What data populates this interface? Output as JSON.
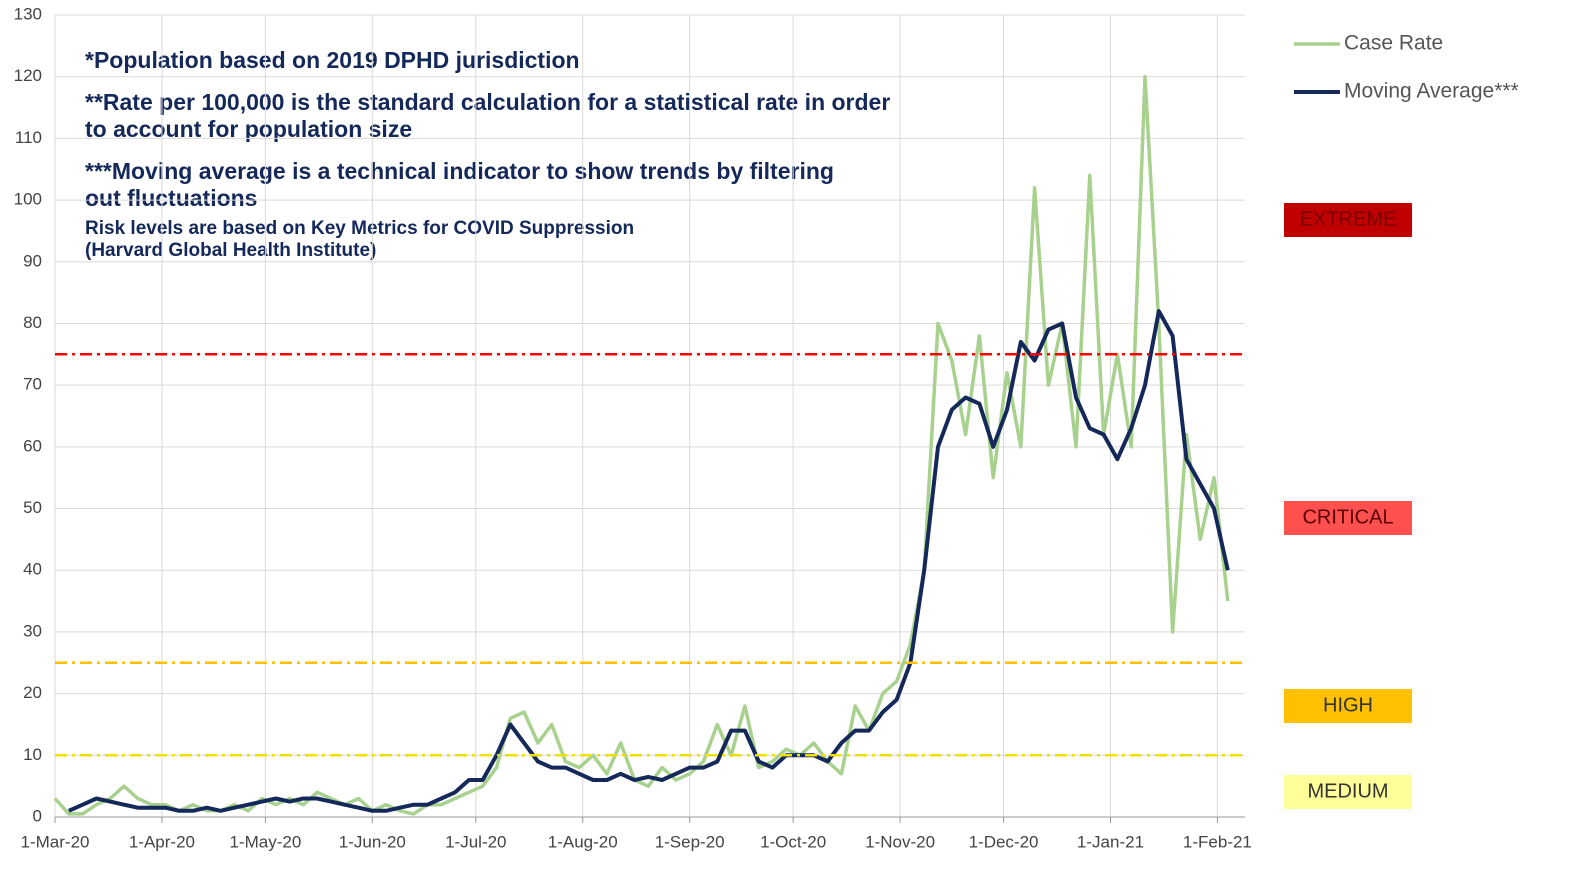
{
  "chart_data": {
    "type": "line",
    "annotations": [
      "*Population based on 2019 DPHD jurisdiction",
      "**Rate per 100,000 is the standard calculation for a statistical rate in order",
      "to account for population size",
      "***Moving average is a technical indicator to show trends by filtering",
      "out fluctuations",
      "Risk levels are based on Key Metrics for COVID Suppression",
      "(Harvard Global Health Institute)"
    ],
    "x": [
      "2020-03-01",
      "2020-03-05",
      "2020-03-09",
      "2020-03-13",
      "2020-03-17",
      "2020-03-21",
      "2020-03-25",
      "2020-03-29",
      "2020-04-02",
      "2020-04-06",
      "2020-04-10",
      "2020-04-14",
      "2020-04-18",
      "2020-04-22",
      "2020-04-26",
      "2020-04-30",
      "2020-05-04",
      "2020-05-08",
      "2020-05-12",
      "2020-05-16",
      "2020-05-20",
      "2020-05-24",
      "2020-05-28",
      "2020-06-01",
      "2020-06-05",
      "2020-06-09",
      "2020-06-13",
      "2020-06-17",
      "2020-06-21",
      "2020-06-25",
      "2020-06-29",
      "2020-07-03",
      "2020-07-07",
      "2020-07-11",
      "2020-07-15",
      "2020-07-19",
      "2020-07-23",
      "2020-07-27",
      "2020-07-31",
      "2020-08-04",
      "2020-08-08",
      "2020-08-12",
      "2020-08-16",
      "2020-08-20",
      "2020-08-24",
      "2020-08-28",
      "2020-09-01",
      "2020-09-05",
      "2020-09-09",
      "2020-09-13",
      "2020-09-17",
      "2020-09-21",
      "2020-09-25",
      "2020-09-29",
      "2020-10-03",
      "2020-10-07",
      "2020-10-11",
      "2020-10-15",
      "2020-10-19",
      "2020-10-23",
      "2020-10-27",
      "2020-10-31",
      "2020-11-04",
      "2020-11-08",
      "2020-11-12",
      "2020-11-16",
      "2020-11-20",
      "2020-11-24",
      "2020-11-28",
      "2020-12-02",
      "2020-12-06",
      "2020-12-10",
      "2020-12-14",
      "2020-12-18",
      "2020-12-22",
      "2020-12-26",
      "2020-12-30",
      "2021-01-03",
      "2021-01-07",
      "2021-01-11",
      "2021-01-15",
      "2021-01-19",
      "2021-01-23",
      "2021-01-27",
      "2021-01-31",
      "2021-02-04"
    ],
    "series": [
      {
        "name": "Case Rate",
        "color": "#a9d18e",
        "width": 3.5,
        "values": [
          3,
          0.5,
          0.5,
          2,
          3,
          5,
          3,
          2,
          2,
          1,
          2,
          1,
          1,
          2,
          1,
          3,
          2,
          3,
          2,
          4,
          3,
          2,
          3,
          1,
          2,
          1,
          0.5,
          2,
          2,
          3,
          4,
          5,
          8,
          16,
          17,
          12,
          15,
          9,
          8,
          10,
          7,
          12,
          6,
          5,
          8,
          6,
          7,
          9,
          15,
          10,
          18,
          8,
          9,
          11,
          10,
          12,
          9,
          7,
          18,
          14,
          20,
          22,
          28,
          40,
          80,
          74,
          62,
          78,
          55,
          72,
          60,
          102,
          70,
          80,
          60,
          104,
          62,
          75,
          60,
          120,
          80,
          30,
          62,
          45,
          55,
          35
        ]
      },
      {
        "name": "Moving Average***",
        "color": "#14285a",
        "width": 4,
        "values": [
          null,
          1,
          2,
          3,
          2.5,
          2,
          1.5,
          1.5,
          1.5,
          1,
          1,
          1.5,
          1,
          1.5,
          2,
          2.5,
          3,
          2.5,
          3,
          3,
          2.5,
          2,
          1.5,
          1,
          1,
          1.5,
          2,
          2,
          3,
          4,
          6,
          6,
          10,
          15,
          12,
          9,
          8,
          8,
          7,
          6,
          6,
          7,
          6,
          6.5,
          6,
          7,
          8,
          8,
          9,
          14,
          14,
          9,
          8,
          10,
          10,
          10,
          9,
          12,
          14,
          14,
          17,
          19,
          25,
          40,
          60,
          66,
          68,
          67,
          60,
          66,
          77,
          74,
          79,
          80,
          68,
          63,
          62,
          58,
          63,
          70,
          82,
          78,
          58,
          54,
          50,
          40
        ]
      }
    ],
    "risk_levels": [
      {
        "name": "EXTREME",
        "value": 75,
        "color": "#ff0000",
        "box_color": "#c00000"
      },
      {
        "name": "CRITICAL",
        "value": 25,
        "color": "#ffc000",
        "box_color": "#ff5050"
      },
      {
        "name": "HIGH",
        "value": 10,
        "color": "#f0e000",
        "box_color": "#ffc000"
      },
      {
        "name": "MEDIUM",
        "box_color": "#ffff99"
      }
    ],
    "xlim": [
      "2020-03-01",
      "2021-02-09"
    ],
    "xticks": [
      {
        "value": "2020-03-01",
        "label": "1-Mar-20"
      },
      {
        "value": "2020-04-01",
        "label": "1-Apr-20"
      },
      {
        "value": "2020-05-01",
        "label": "1-May-20"
      },
      {
        "value": "2020-06-01",
        "label": "1-Jun-20"
      },
      {
        "value": "2020-07-01",
        "label": "1-Jul-20"
      },
      {
        "value": "2020-08-01",
        "label": "1-Aug-20"
      },
      {
        "value": "2020-09-01",
        "label": "1-Sep-20"
      },
      {
        "value": "2020-10-01",
        "label": "1-Oct-20"
      },
      {
        "value": "2020-11-01",
        "label": "1-Nov-20"
      },
      {
        "value": "2020-12-01",
        "label": "1-Dec-20"
      },
      {
        "value": "2021-01-01",
        "label": "1-Jan-21"
      },
      {
        "value": "2021-02-01",
        "label": "1-Feb-21"
      }
    ],
    "ylim": [
      0,
      130
    ],
    "yticks": [
      0,
      10,
      20,
      30,
      40,
      50,
      60,
      70,
      80,
      90,
      100,
      110,
      120,
      130
    ],
    "grid": true,
    "legend": "top-right"
  }
}
